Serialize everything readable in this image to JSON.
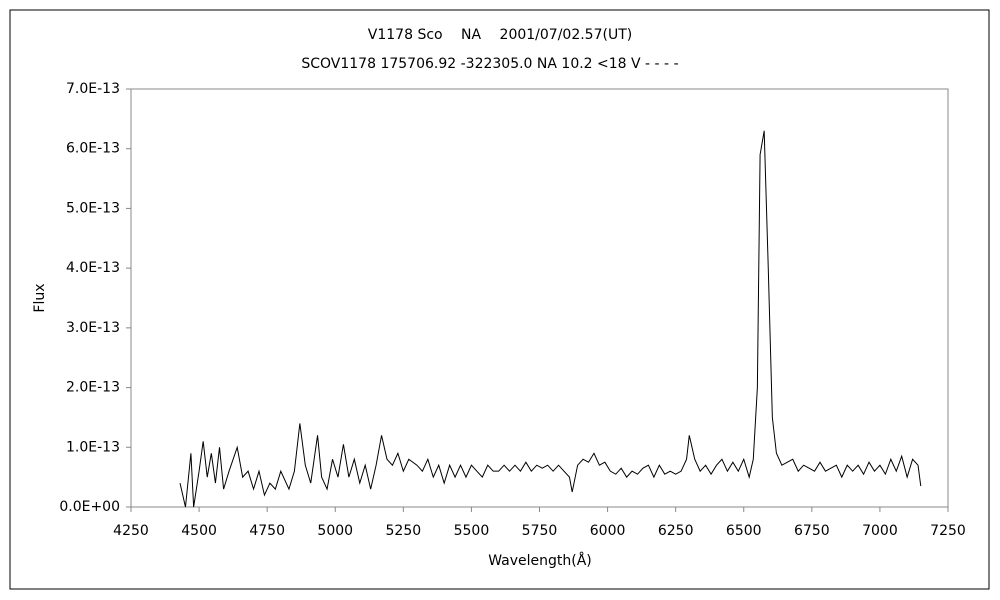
{
  "chart_data": {
    "type": "line",
    "title": "V1178 Sco　 NA　 2001/07/02.57(UT)",
    "subtitle": "SCOV1178 175706.92 -322305.0 NA 10.2 <18 V - - - -",
    "x_label": "Wavelength(Å)",
    "y_label": "Flux",
    "xlim": [
      4250,
      7250
    ],
    "xticks": [
      4250,
      4500,
      4750,
      5000,
      5250,
      5500,
      5750,
      6000,
      6250,
      6500,
      6750,
      7000,
      7250
    ],
    "ylim": [
      0,
      7e-13
    ],
    "yticks": [
      {
        "value": 0,
        "label": "0.0E+00"
      },
      {
        "value": 1e-13,
        "label": "1.0E-13"
      },
      {
        "value": 2e-13,
        "label": "2.0E-13"
      },
      {
        "value": 3e-13,
        "label": "3.0E-13"
      },
      {
        "value": 4e-13,
        "label": "4.0E-13"
      },
      {
        "value": 5e-13,
        "label": "5.0E-13"
      },
      {
        "value": 6e-13,
        "label": "6.0E-13"
      },
      {
        "value": 7e-13,
        "label": "7.0E-13"
      }
    ],
    "color": "#000000",
    "x": [
      4430,
      4450,
      4470,
      4480,
      4500,
      4515,
      4530,
      4545,
      4560,
      4575,
      4590,
      4610,
      4640,
      4660,
      4680,
      4700,
      4720,
      4740,
      4760,
      4780,
      4800,
      4830,
      4850,
      4870,
      4890,
      4910,
      4935,
      4950,
      4970,
      4990,
      5010,
      5030,
      5050,
      5070,
      5090,
      5110,
      5130,
      5150,
      5170,
      5190,
      5210,
      5230,
      5250,
      5270,
      5300,
      5320,
      5340,
      5360,
      5380,
      5400,
      5420,
      5440,
      5460,
      5480,
      5500,
      5520,
      5540,
      5560,
      5580,
      5600,
      5620,
      5640,
      5660,
      5680,
      5700,
      5720,
      5740,
      5760,
      5780,
      5800,
      5820,
      5840,
      5860,
      5870,
      5890,
      5910,
      5930,
      5950,
      5970,
      5990,
      6010,
      6030,
      6050,
      6070,
      6090,
      6110,
      6130,
      6150,
      6170,
      6190,
      6210,
      6230,
      6250,
      6270,
      6290,
      6300,
      6320,
      6340,
      6360,
      6380,
      6400,
      6420,
      6440,
      6460,
      6480,
      6500,
      6520,
      6535,
      6550,
      6560,
      6575,
      6590,
      6605,
      6620,
      6640,
      6660,
      6680,
      6700,
      6720,
      6740,
      6760,
      6780,
      6800,
      6820,
      6840,
      6860,
      6880,
      6900,
      6920,
      6940,
      6960,
      6980,
      7000,
      7020,
      7040,
      7060,
      7080,
      7100,
      7120,
      7140,
      7150
    ],
    "values": [
      4e-14,
      0.0,
      9e-14,
      0.0,
      6e-14,
      1.1e-13,
      5e-14,
      9e-14,
      4e-14,
      1e-13,
      3e-14,
      6e-14,
      1e-13,
      5e-14,
      6e-14,
      3e-14,
      6e-14,
      2e-14,
      4e-14,
      3e-14,
      6e-14,
      3e-14,
      6e-14,
      1.4e-13,
      7e-14,
      4e-14,
      1.2e-13,
      5e-14,
      3e-14,
      8e-14,
      5e-14,
      1.05e-13,
      5e-14,
      8e-14,
      4e-14,
      7e-14,
      3e-14,
      7e-14,
      1.2e-13,
      8e-14,
      7e-14,
      9e-14,
      6e-14,
      8e-14,
      7e-14,
      6e-14,
      8e-14,
      5e-14,
      7e-14,
      4e-14,
      7e-14,
      5e-14,
      7e-14,
      5e-14,
      7e-14,
      6e-14,
      5e-14,
      7e-14,
      6e-14,
      6e-14,
      7e-14,
      6e-14,
      7e-14,
      6e-14,
      7.5e-14,
      6e-14,
      7e-14,
      6.5e-14,
      7e-14,
      6e-14,
      7e-14,
      6e-14,
      5e-14,
      2.5e-14,
      7e-14,
      8e-14,
      7.5e-14,
      9e-14,
      7e-14,
      7.5e-14,
      6e-14,
      5.5e-14,
      6.5e-14,
      5e-14,
      6e-14,
      5.5e-14,
      6.5e-14,
      7e-14,
      5e-14,
      7e-14,
      5.5e-14,
      6e-14,
      5.5e-14,
      6e-14,
      8e-14,
      1.2e-13,
      8e-14,
      6e-14,
      7e-14,
      5.5e-14,
      7e-14,
      8e-14,
      6e-14,
      7.5e-14,
      6e-14,
      8e-14,
      5e-14,
      8e-14,
      2e-13,
      5.9e-13,
      6.3e-13,
      4e-13,
      1.5e-13,
      9e-14,
      7e-14,
      7.5e-14,
      8e-14,
      6e-14,
      7e-14,
      6.5e-14,
      6e-14,
      7.5e-14,
      6e-14,
      6.5e-14,
      7e-14,
      5e-14,
      7e-14,
      6e-14,
      7e-14,
      5.5e-14,
      7.5e-14,
      6e-14,
      7e-14,
      5.5e-14,
      8e-14,
      6e-14,
      8.5e-14,
      5e-14,
      8e-14,
      7e-14,
      3.5e-14
    ]
  }
}
